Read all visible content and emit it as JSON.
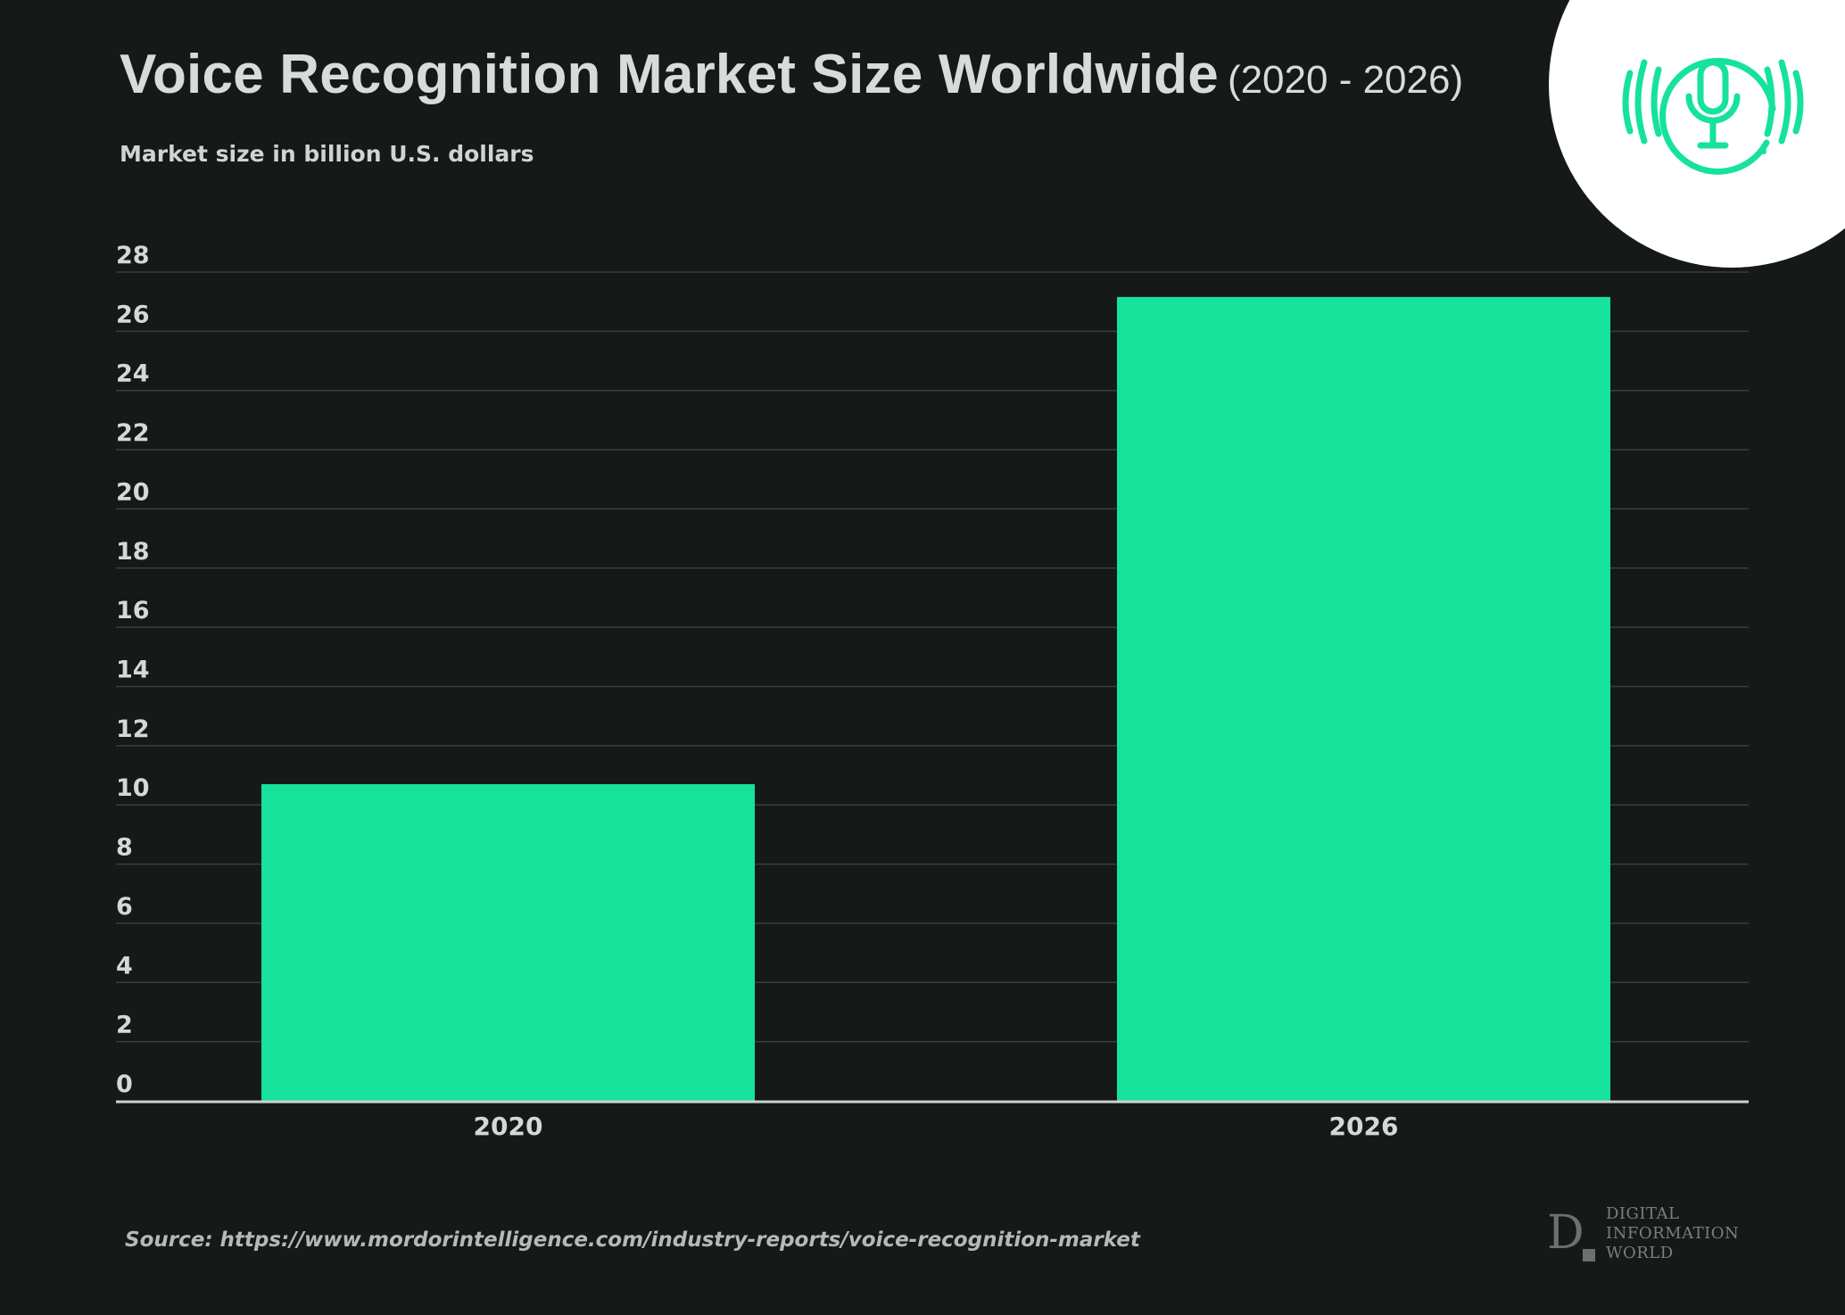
{
  "header": {
    "title": "Voice Recognition Market Size Worldwide",
    "title_range": "(2020 - 2026)",
    "subtitle": "Market size in billion U.S. dollars"
  },
  "badge_icon": "microphone-icon",
  "source": "Source: https://www.mordorintelligence.com/industry-reports/voice-recognition-market",
  "logo": {
    "letter": "D",
    "lines": [
      "DIGITAL",
      "INFORMATION",
      "WORLD"
    ]
  },
  "colors": {
    "background": "#151918",
    "bar": "#16e29b",
    "grid": "#3a3e3d",
    "axis": "#d0d2d1",
    "text": "#d6d8d7",
    "icon": "#16e29b"
  },
  "chart_data": {
    "type": "bar",
    "title": "Voice Recognition Market Size Worldwide (2020 - 2026)",
    "ylabel": "Market size in billion U.S. dollars",
    "xlabel": "",
    "categories": [
      "2020",
      "2026"
    ],
    "values": [
      10.7,
      27.16
    ],
    "ylim": [
      0,
      28
    ],
    "yticks": [
      0,
      2,
      4,
      6,
      8,
      10,
      12,
      14,
      16,
      18,
      20,
      22,
      24,
      26,
      28
    ],
    "grid": true,
    "legend": "none"
  }
}
